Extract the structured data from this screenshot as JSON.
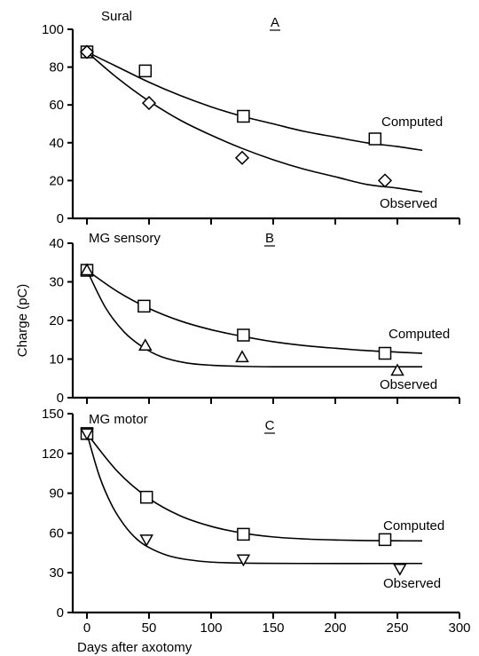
{
  "chart_data": {
    "ylabel": "Charge (pC)",
    "xlabel": "Days after axotomy",
    "xlim": [
      0,
      300
    ],
    "x_ticks": [
      0,
      50,
      100,
      150,
      200,
      250,
      300
    ],
    "grid": false,
    "panels": [
      {
        "type": "line+scatter",
        "title": "Sural",
        "letter": "A",
        "ylim": [
          0,
          100
        ],
        "y_ticks": [
          0,
          20,
          40,
          60,
          80,
          100
        ],
        "series": [
          {
            "name": "Computed",
            "marker": "square",
            "points": {
              "x": [
                0,
                47,
                126,
                232
              ],
              "y": [
                88,
                78,
                54,
                42
              ]
            },
            "curve": {
              "x": [
                0,
                25,
                50,
                75,
                100,
                125,
                150,
                175,
                200,
                225,
                250,
                270
              ],
              "y": [
                88,
                80,
                72,
                65,
                59,
                54,
                50,
                46,
                43,
                40,
                38,
                36
              ]
            }
          },
          {
            "name": "Observed",
            "marker": "diamond",
            "points": {
              "x": [
                0,
                50,
                125,
                240
              ],
              "y": [
                88,
                61,
                32,
                20
              ]
            },
            "curve": {
              "x": [
                0,
                25,
                50,
                75,
                100,
                125,
                150,
                175,
                200,
                225,
                250,
                270
              ],
              "y": [
                88,
                74,
                62,
                52,
                44,
                37,
                31,
                26,
                22,
                18,
                16,
                14
              ]
            }
          }
        ]
      },
      {
        "type": "line+scatter",
        "title": "MG sensory",
        "letter": "B",
        "ylim": [
          0,
          40
        ],
        "y_ticks": [
          0,
          10,
          20,
          30,
          40
        ],
        "series": [
          {
            "name": "Computed",
            "marker": "square",
            "points": {
              "x": [
                0,
                46,
                126,
                240
              ],
              "y": [
                33,
                23.7,
                16.2,
                11.5
              ]
            },
            "curve": {
              "x": [
                0,
                25,
                50,
                75,
                100,
                125,
                150,
                175,
                200,
                225,
                250,
                270
              ],
              "y": [
                33,
                27.4,
                23.1,
                19.9,
                17.6,
                15.9,
                14.5,
                13.5,
                12.8,
                12.2,
                11.8,
                11.5
              ]
            }
          },
          {
            "name": "Observed",
            "marker": "triangle-up",
            "points": {
              "x": [
                0,
                47,
                125,
                250
              ],
              "y": [
                33,
                13.5,
                10.5,
                7
              ]
            },
            "curve": {
              "x": [
                0,
                15,
                30,
                45,
                60,
                80,
                100,
                125,
                150,
                200,
                270
              ],
              "y": [
                33,
                23.3,
                17.0,
                13.1,
                10.6,
                9.0,
                8.4,
                8.1,
                8.0,
                8.0,
                8.0
              ]
            }
          }
        ]
      },
      {
        "type": "line+scatter",
        "title": "MG motor",
        "letter": "C",
        "ylim": [
          0,
          150
        ],
        "y_ticks": [
          0,
          30,
          60,
          90,
          120,
          150
        ],
        "series": [
          {
            "name": "Computed",
            "marker": "square",
            "points": {
              "x": [
                0,
                48,
                126,
                240
              ],
              "y": [
                135,
                87,
                59,
                55
              ]
            },
            "curve": {
              "x": [
                0,
                25,
                50,
                75,
                100,
                125,
                150,
                175,
                200,
                225,
                250,
                270
              ],
              "y": [
                135,
                106,
                86,
                73,
                65,
                60,
                57,
                55.5,
                54.7,
                54.3,
                54.1,
                54
              ]
            }
          },
          {
            "name": "Observed",
            "marker": "triangle-down",
            "points": {
              "x": [
                0,
                48,
                126,
                252
              ],
              "y": [
                135,
                55,
                40,
                33
              ]
            },
            "curve": {
              "x": [
                0,
                10,
                20,
                30,
                40,
                50,
                65,
                80,
                100,
                130,
                170,
                270
              ],
              "y": [
                135,
                103,
                81,
                66,
                55.5,
                49,
                43,
                40,
                38,
                37.2,
                37,
                37
              ]
            }
          }
        ]
      }
    ]
  }
}
